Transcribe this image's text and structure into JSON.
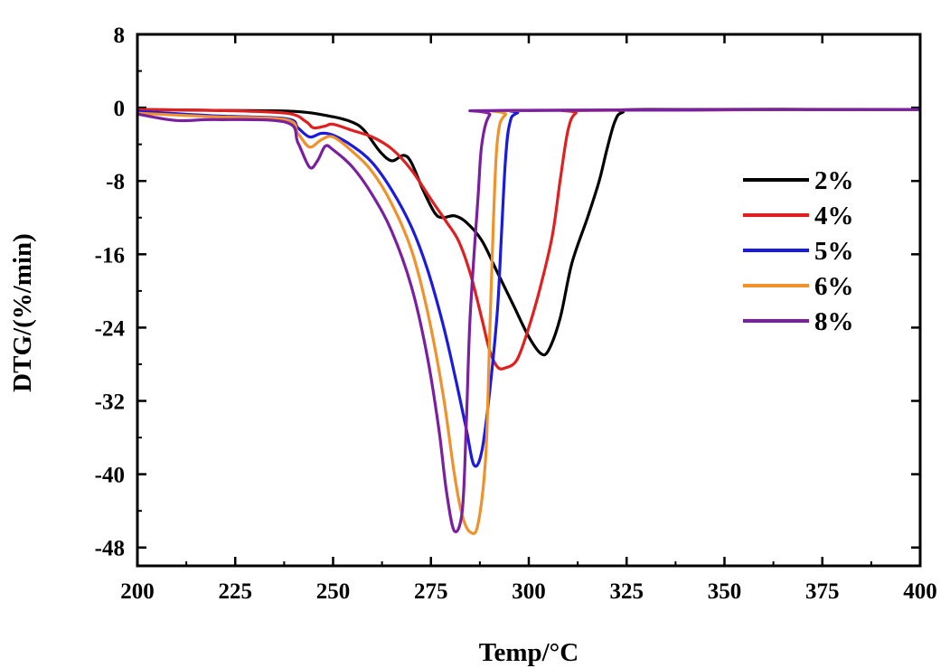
{
  "chart_data": {
    "type": "line",
    "xlabel": "Temp/°C",
    "ylabel": "DTG/(%/min)",
    "xlim": [
      200,
      400
    ],
    "ylim": [
      -50,
      8
    ],
    "xticks": [
      200,
      225,
      250,
      275,
      300,
      325,
      350,
      375,
      400
    ],
    "xtick_labels": [
      "200",
      "225",
      "250",
      "275",
      "300",
      "325",
      "350",
      "375",
      "400"
    ],
    "yticks": [
      8,
      0,
      -8,
      -16,
      -24,
      -32,
      -40,
      -48
    ],
    "ytick_labels": [
      "8",
      "0",
      "-8",
      "-16",
      "-24",
      "-32",
      "-40",
      "-48"
    ],
    "grid": false,
    "legend_position": "right",
    "series": [
      {
        "name": "2%",
        "color": "#000000",
        "points": [
          [
            200,
            -0.2
          ],
          [
            220,
            -0.3
          ],
          [
            240,
            -0.4
          ],
          [
            250,
            -1.0
          ],
          [
            255,
            -1.6
          ],
          [
            258,
            -2.5
          ],
          [
            262,
            -4.8
          ],
          [
            265,
            -5.8
          ],
          [
            268,
            -5.2
          ],
          [
            270,
            -6.0
          ],
          [
            273,
            -9.0
          ],
          [
            276,
            -11.5
          ],
          [
            278,
            -12.0
          ],
          [
            281,
            -11.8
          ],
          [
            284,
            -12.5
          ],
          [
            288,
            -14.5
          ],
          [
            292,
            -18.0
          ],
          [
            296,
            -21.5
          ],
          [
            300,
            -25.0
          ],
          [
            303,
            -26.8
          ],
          [
            305,
            -26.5
          ],
          [
            308,
            -23.0
          ],
          [
            311,
            -17.0
          ],
          [
            315,
            -12.0
          ],
          [
            318,
            -8.0
          ],
          [
            320,
            -4.5
          ],
          [
            322,
            -1.5
          ],
          [
            324,
            -0.5
          ],
          [
            330,
            -0.2
          ],
          [
            400,
            -0.2
          ]
        ]
      },
      {
        "name": "4%",
        "color": "#e02020",
        "points": [
          [
            200,
            -0.2
          ],
          [
            220,
            -0.3
          ],
          [
            238,
            -0.6
          ],
          [
            243,
            -1.5
          ],
          [
            245,
            -2.2
          ],
          [
            248,
            -2.0
          ],
          [
            250,
            -1.8
          ],
          [
            255,
            -2.5
          ],
          [
            260,
            -3.2
          ],
          [
            265,
            -4.5
          ],
          [
            270,
            -6.8
          ],
          [
            275,
            -10.0
          ],
          [
            279,
            -12.5
          ],
          [
            282,
            -14.5
          ],
          [
            285,
            -18.0
          ],
          [
            288,
            -23.0
          ],
          [
            290,
            -26.5
          ],
          [
            292,
            -28.3
          ],
          [
            294,
            -28.4
          ],
          [
            297,
            -27.5
          ],
          [
            300,
            -24.0
          ],
          [
            303,
            -19.5
          ],
          [
            306,
            -14.0
          ],
          [
            308,
            -8.0
          ],
          [
            310,
            -2.5
          ],
          [
            312,
            -0.6
          ],
          [
            316,
            -0.3
          ],
          [
            400,
            -0.2
          ]
        ]
      },
      {
        "name": "5%",
        "color": "#1a1ae0",
        "points": [
          [
            200,
            -0.4
          ],
          [
            220,
            -0.9
          ],
          [
            238,
            -1.2
          ],
          [
            241,
            -2.2
          ],
          [
            244,
            -3.2
          ],
          [
            247,
            -2.8
          ],
          [
            250,
            -3.0
          ],
          [
            255,
            -4.2
          ],
          [
            260,
            -6.0
          ],
          [
            265,
            -9.0
          ],
          [
            270,
            -13.0
          ],
          [
            274,
            -17.5
          ],
          [
            278,
            -23.5
          ],
          [
            281,
            -29.0
          ],
          [
            284,
            -35.0
          ],
          [
            286,
            -39.0
          ],
          [
            288,
            -37.5
          ],
          [
            290,
            -31.0
          ],
          [
            292,
            -22.0
          ],
          [
            293,
            -14.0
          ],
          [
            294,
            -6.0
          ],
          [
            295,
            -2.0
          ],
          [
            297,
            -0.6
          ],
          [
            305,
            -0.3
          ],
          [
            400,
            -0.2
          ]
        ]
      },
      {
        "name": "6%",
        "color": "#f0922c",
        "points": [
          [
            200,
            -0.6
          ],
          [
            220,
            -1.0
          ],
          [
            238,
            -1.3
          ],
          [
            241,
            -2.8
          ],
          [
            244,
            -4.3
          ],
          [
            247,
            -3.5
          ],
          [
            250,
            -3.2
          ],
          [
            255,
            -4.8
          ],
          [
            260,
            -7.0
          ],
          [
            265,
            -10.5
          ],
          [
            270,
            -15.5
          ],
          [
            274,
            -22.0
          ],
          [
            278,
            -31.0
          ],
          [
            281,
            -40.0
          ],
          [
            283,
            -44.5
          ],
          [
            285,
            -46.3
          ],
          [
            287,
            -45.5
          ],
          [
            289,
            -38.0
          ],
          [
            290,
            -25.0
          ],
          [
            291,
            -12.0
          ],
          [
            292,
            -3.5
          ],
          [
            294,
            -0.8
          ],
          [
            300,
            -0.3
          ],
          [
            400,
            -0.2
          ]
        ]
      },
      {
        "name": "8%",
        "color": "#7a1fa0",
        "points": [
          [
            200,
            -0.7
          ],
          [
            210,
            -1.4
          ],
          [
            220,
            -1.3
          ],
          [
            238,
            -1.6
          ],
          [
            241,
            -3.8
          ],
          [
            244,
            -6.5
          ],
          [
            246,
            -5.8
          ],
          [
            248,
            -4.2
          ],
          [
            250,
            -4.6
          ],
          [
            255,
            -6.5
          ],
          [
            260,
            -9.5
          ],
          [
            265,
            -13.5
          ],
          [
            270,
            -19.5
          ],
          [
            274,
            -27.0
          ],
          [
            277,
            -35.0
          ],
          [
            279,
            -42.0
          ],
          [
            281,
            -46.2
          ],
          [
            283,
            -44.0
          ],
          [
            284,
            -35.0
          ],
          [
            285,
            -23.0
          ],
          [
            287,
            -10.0
          ],
          [
            288,
            -4.0
          ],
          [
            290,
            -0.8
          ],
          [
            294,
            -0.3
          ],
          [
            400,
            -0.2
          ]
        ]
      }
    ]
  }
}
